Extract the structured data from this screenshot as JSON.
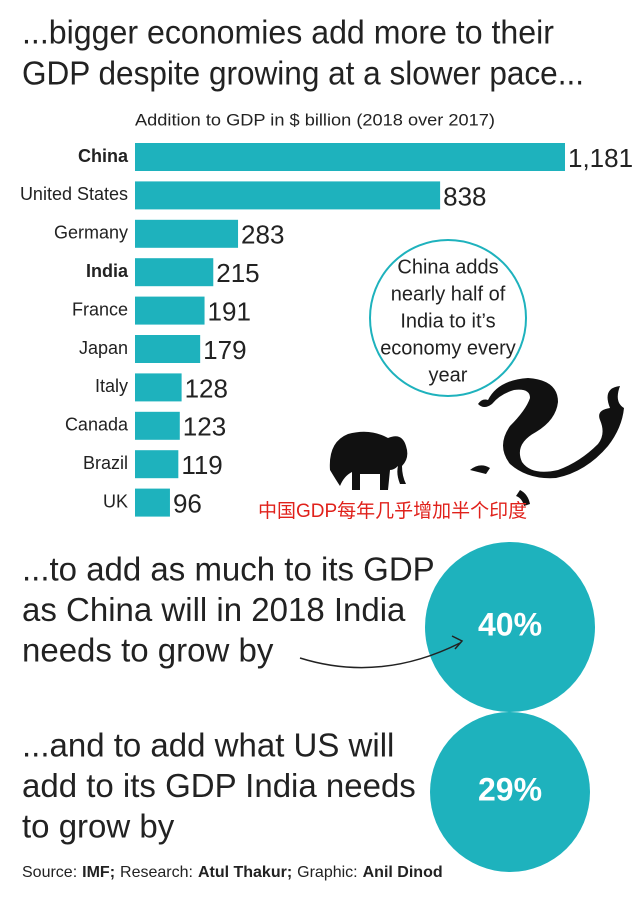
{
  "chart_data": {
    "type": "bar",
    "orientation": "horizontal",
    "title": [
      "...bigger economies add more to their",
      "GDP despite growing at a slower pace..."
    ],
    "subtitle": "Addition to GDP in $ billion (2018 over 2017)",
    "categories": [
      "China",
      "United States",
      "Germany",
      "India",
      "France",
      "Japan",
      "Italy",
      "Canada",
      "Brazil",
      "UK"
    ],
    "values": [
      1181,
      838,
      283,
      215,
      191,
      179,
      128,
      123,
      119,
      96
    ],
    "value_labels": [
      "1,181",
      "838",
      "283",
      "215",
      "191",
      "179",
      "128",
      "123",
      "119",
      "96"
    ],
    "highlight": [
      0,
      3
    ],
    "color": "#1eb2bd",
    "annotations": [
      {
        "lines": [
          "China adds",
          "nearly half of",
          "India to it’s",
          "economy every",
          "year"
        ]
      },
      {
        "lines": [
          "中国GDP每年几乎增加半个印度"
        ]
      }
    ]
  },
  "stats": [
    {
      "lines": [
        "...to add as much to its GDP",
        "as China will in 2018 India",
        "needs to grow by"
      ],
      "figure": "40%"
    },
    {
      "lines": [
        "...and to add what US will",
        "add to its GDP India needs",
        "to grow by"
      ],
      "figure": "29%"
    }
  ],
  "source": [
    {
      "label": "Source:",
      "name": "IMF;"
    },
    {
      "label": "Research:",
      "name": "Atul Thakur;"
    },
    {
      "label": "Graphic:",
      "name": "Anil Dinod"
    }
  ]
}
